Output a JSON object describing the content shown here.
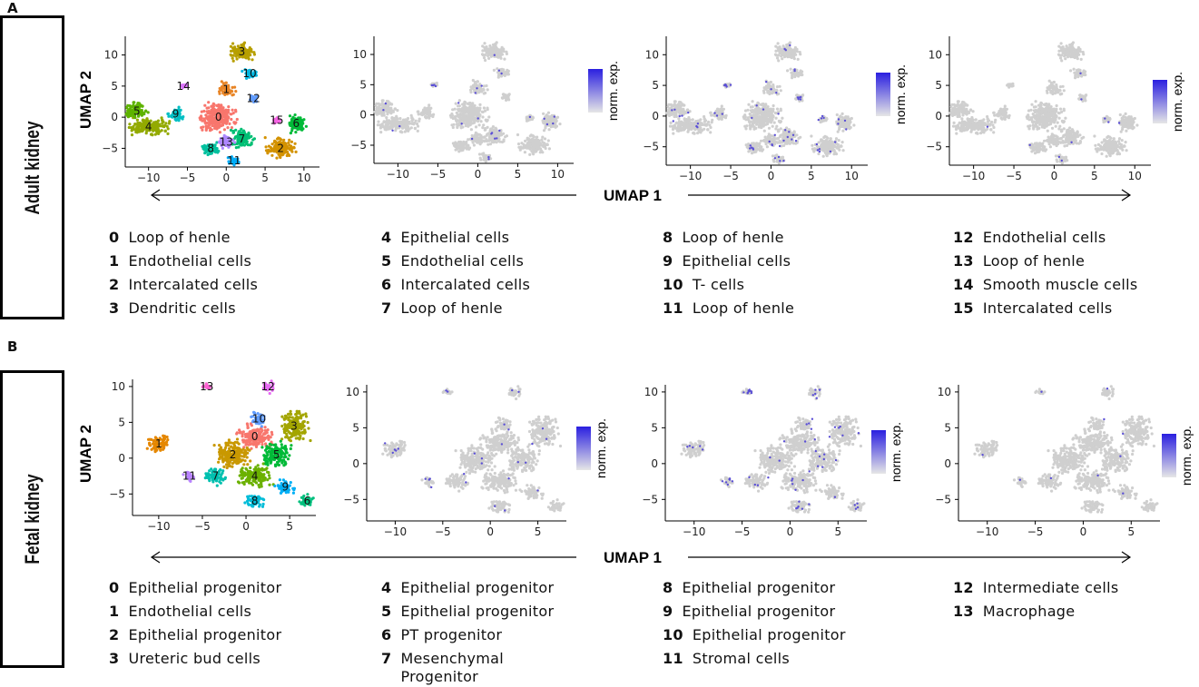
{
  "panels": [
    {
      "letter": "A",
      "side_label": "Adult kidney",
      "ylabel": "UMAP 2",
      "xlabel": "UMAP 1",
      "feature_legend": "norm. exp.",
      "clusters": [
        {
          "id": "0",
          "label": "Loop of henle"
        },
        {
          "id": "1",
          "label": "Endothelial cells"
        },
        {
          "id": "2",
          "label": "Intercalated cells"
        },
        {
          "id": "3",
          "label": "Dendritic cells"
        },
        {
          "id": "4",
          "label": "Epithelial cells"
        },
        {
          "id": "5",
          "label": "Endothelial cells"
        },
        {
          "id": "6",
          "label": "Intercalated cells"
        },
        {
          "id": "7",
          "label": "Loop of henle"
        },
        {
          "id": "8",
          "label": "Loop of henle"
        },
        {
          "id": "9",
          "label": "Epithelial cells"
        },
        {
          "id": "10",
          "label": "T- cells"
        },
        {
          "id": "11",
          "label": "Loop of henle"
        },
        {
          "id": "12",
          "label": "Endothelial cells"
        },
        {
          "id": "13",
          "label": "Loop of henle"
        },
        {
          "id": "14",
          "label": "Smooth muscle cells"
        },
        {
          "id": "15",
          "label": "Intercalated cells"
        }
      ],
      "plots": [
        {
          "xticks": [
            "-10",
            "-5",
            "0",
            "5",
            "10"
          ],
          "yticks": [
            "10",
            "5",
            "0",
            "-5"
          ],
          "mode": "clusters"
        },
        {
          "xticks": [
            "-10",
            "-5",
            "0",
            "5",
            "10"
          ],
          "yticks": [
            "10",
            "5",
            "0",
            "-5"
          ],
          "mode": "feature"
        },
        {
          "xticks": [
            "-10",
            "-5",
            "0",
            "5",
            "10"
          ],
          "yticks": [
            "10",
            "5",
            "0",
            "-5"
          ],
          "mode": "feature"
        },
        {
          "xticks": [
            "-10",
            "-5",
            "0",
            "5",
            "10"
          ],
          "yticks": [
            "10",
            "5",
            "0",
            "-5"
          ],
          "mode": "feature"
        }
      ]
    },
    {
      "letter": "B",
      "side_label": "Fetal  kidney",
      "ylabel": "UMAP 2",
      "xlabel": "UMAP 1",
      "feature_legend": "norm. exp.",
      "clusters": [
        {
          "id": "0",
          "label": "Epithelial progenitor"
        },
        {
          "id": "1",
          "label": "Endothelial cells"
        },
        {
          "id": "2",
          "label": "Epithelial progenitor"
        },
        {
          "id": "3",
          "label": "Ureteric bud cells"
        },
        {
          "id": "4",
          "label": "Epithelial progenitor"
        },
        {
          "id": "5",
          "label": "Epithelial progenitor"
        },
        {
          "id": "6",
          "label": "PT progenitor"
        },
        {
          "id": "7",
          "label": "Mesenchymal Progenitor"
        },
        {
          "id": "8",
          "label": "Epithelial progenitor"
        },
        {
          "id": "9",
          "label": "Epithelial progenitor"
        },
        {
          "id": "10",
          "label": "Epithelial progenitor"
        },
        {
          "id": "11",
          "label": "Stromal cells"
        },
        {
          "id": "12",
          "label": "Intermediate cells"
        },
        {
          "id": "13",
          "label": "Macrophage"
        }
      ],
      "plots": [
        {
          "xticks": [
            "-10",
            "-5",
            "0",
            "5"
          ],
          "yticks": [
            "10",
            "5",
            "0",
            "-5"
          ],
          "mode": "clusters"
        },
        {
          "xticks": [
            "-10",
            "-5",
            "0",
            "5"
          ],
          "yticks": [
            "10",
            "5",
            "0",
            "-5"
          ],
          "mode": "feature"
        },
        {
          "xticks": [
            "-10",
            "-5",
            "0",
            "5"
          ],
          "yticks": [
            "10",
            "5",
            "0",
            "-5"
          ],
          "mode": "feature"
        },
        {
          "xticks": [
            "-10",
            "-5",
            "0",
            "5"
          ],
          "yticks": [
            "10",
            "5",
            "0",
            "-5"
          ],
          "mode": "feature"
        }
      ]
    }
  ],
  "chart_data": [
    {
      "type": "scatter",
      "title": "",
      "xlabel": "UMAP 1",
      "ylabel": "UMAP 2",
      "xlim": [
        -13,
        12
      ],
      "ylim": [
        -8,
        13
      ],
      "description": "Adult kidney UMAP colored by cluster (0-15) plus three feature plots shaded by norm. exp.",
      "cluster_centers": [
        {
          "cluster": "0",
          "x": -1.0,
          "y": 0.0
        },
        {
          "cluster": "1",
          "x": 0.0,
          "y": 4.5
        },
        {
          "cluster": "2",
          "x": 7.0,
          "y": -5.0
        },
        {
          "cluster": "3",
          "x": 2.0,
          "y": 10.5
        },
        {
          "cluster": "4",
          "x": -10.0,
          "y": -1.5
        },
        {
          "cluster": "5",
          "x": -11.5,
          "y": 1.0
        },
        {
          "cluster": "6",
          "x": 9.0,
          "y": -1.0
        },
        {
          "cluster": "7",
          "x": 2.0,
          "y": -3.5
        },
        {
          "cluster": "8",
          "x": -2.0,
          "y": -5.0
        },
        {
          "cluster": "9",
          "x": -6.5,
          "y": 0.5
        },
        {
          "cluster": "10",
          "x": 3.0,
          "y": 7.0
        },
        {
          "cluster": "11",
          "x": 1.0,
          "y": -7.0
        },
        {
          "cluster": "12",
          "x": 3.5,
          "y": 3.0
        },
        {
          "cluster": "13",
          "x": 0.0,
          "y": -4.0
        },
        {
          "cluster": "14",
          "x": -5.5,
          "y": 5.0
        },
        {
          "cluster": "15",
          "x": 6.5,
          "y": -0.5
        }
      ]
    },
    {
      "type": "scatter",
      "title": "",
      "xlabel": "UMAP 1",
      "ylabel": "UMAP 2",
      "xlim": [
        -13,
        8
      ],
      "ylim": [
        -8,
        11
      ],
      "description": "Fetal kidney UMAP colored by cluster (0-13) plus three feature plots shaded by norm. exp.",
      "cluster_centers": [
        {
          "cluster": "0",
          "x": 1.0,
          "y": 3.0
        },
        {
          "cluster": "1",
          "x": -10.0,
          "y": 2.0
        },
        {
          "cluster": "2",
          "x": -1.5,
          "y": 0.5
        },
        {
          "cluster": "3",
          "x": 5.5,
          "y": 4.5
        },
        {
          "cluster": "4",
          "x": 1.0,
          "y": -2.5
        },
        {
          "cluster": "5",
          "x": 3.5,
          "y": 0.5
        },
        {
          "cluster": "6",
          "x": 7.0,
          "y": -6.0
        },
        {
          "cluster": "7",
          "x": -3.5,
          "y": -2.5
        },
        {
          "cluster": "8",
          "x": 1.0,
          "y": -6.0
        },
        {
          "cluster": "9",
          "x": 4.5,
          "y": -4.0
        },
        {
          "cluster": "10",
          "x": 1.5,
          "y": 5.5
        },
        {
          "cluster": "11",
          "x": -6.5,
          "y": -2.5
        },
        {
          "cluster": "12",
          "x": 2.5,
          "y": 10.0
        },
        {
          "cluster": "13",
          "x": -4.5,
          "y": 10.0
        }
      ]
    }
  ]
}
